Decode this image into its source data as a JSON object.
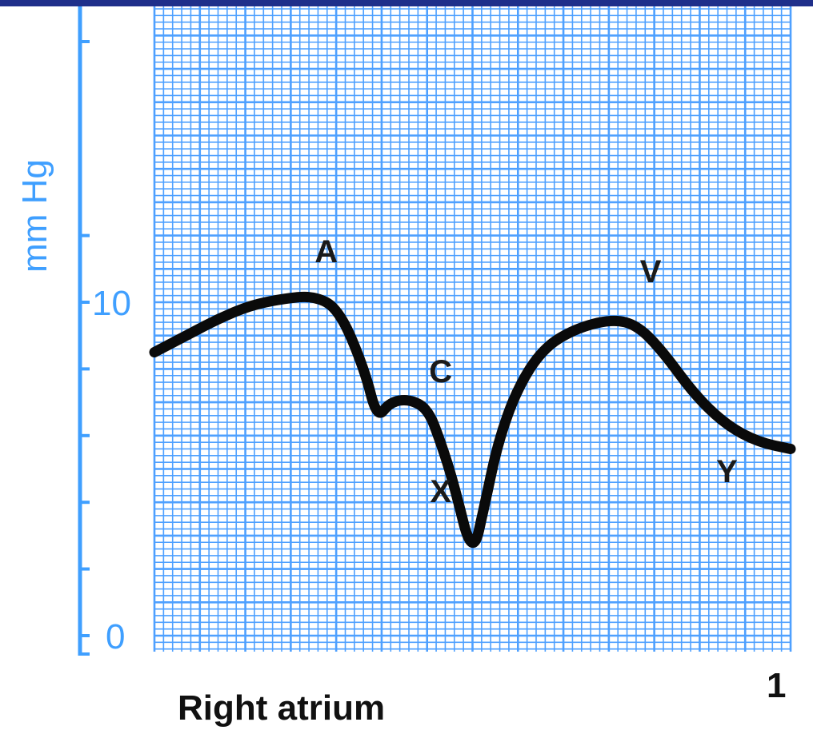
{
  "colors": {
    "top_bar": "#1f2f8a",
    "grid_fine": "#4ea0ff",
    "grid_major": "#1f7fff",
    "axis": "#3f9fff",
    "trace": "#0a0a0a"
  },
  "chart_data": {
    "type": "line",
    "title": "",
    "xlabel": "",
    "ylabel": "mm Hg",
    "xlim": [
      0,
      1
    ],
    "ylim": [
      0,
      12.5
    ],
    "grid": true,
    "y_ticks": [
      {
        "value": 0,
        "label": "0"
      },
      {
        "value": 10,
        "label": "10"
      }
    ],
    "y_minor_ticks": [
      2,
      4,
      6,
      8,
      12
    ],
    "x_end_label": "1",
    "caption": "Right atrium",
    "series": [
      {
        "name": "",
        "points": [
          [
            0.0,
            8.5
          ],
          [
            0.05,
            9.0
          ],
          [
            0.1,
            9.5
          ],
          [
            0.15,
            9.9
          ],
          [
            0.2,
            10.1
          ],
          [
            0.25,
            10.2
          ],
          [
            0.29,
            9.8
          ],
          [
            0.33,
            8.0
          ],
          [
            0.35,
            6.5
          ],
          [
            0.37,
            7.0
          ],
          [
            0.4,
            7.1
          ],
          [
            0.43,
            6.8
          ],
          [
            0.45,
            5.8
          ],
          [
            0.47,
            4.6
          ],
          [
            0.5,
            2.3
          ],
          [
            0.52,
            4.0
          ],
          [
            0.54,
            5.8
          ],
          [
            0.57,
            7.4
          ],
          [
            0.61,
            8.6
          ],
          [
            0.66,
            9.2
          ],
          [
            0.72,
            9.5
          ],
          [
            0.76,
            9.3
          ],
          [
            0.8,
            8.5
          ],
          [
            0.85,
            7.2
          ],
          [
            0.9,
            6.3
          ],
          [
            0.95,
            5.8
          ],
          [
            1.0,
            5.6
          ]
        ]
      }
    ],
    "annotations": [
      {
        "text": "A",
        "x": 0.27,
        "y": 11.2
      },
      {
        "text": "C",
        "x": 0.45,
        "y": 7.6
      },
      {
        "text": "X",
        "x": 0.45,
        "y": 4.0
      },
      {
        "text": "V",
        "x": 0.78,
        "y": 10.6
      },
      {
        "text": "Y",
        "x": 0.9,
        "y": 4.6
      }
    ]
  }
}
